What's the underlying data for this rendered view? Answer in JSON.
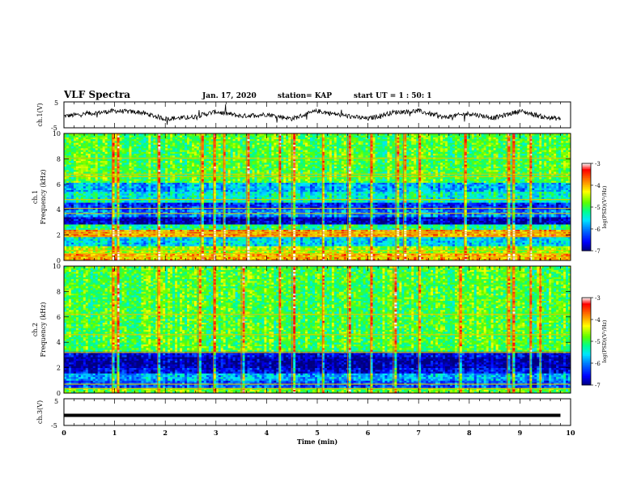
{
  "header": {
    "title": "VLF Spectra",
    "date": "Jan. 17, 2020",
    "station": "station= KAP",
    "start_ut": "start  UT =   1 : 50: 1"
  },
  "chart_data": [
    {
      "type": "line",
      "panel": "ch1-waveform",
      "ylabel": "ch.1(V)",
      "ylim": [
        -5,
        5
      ],
      "yticks": [
        "5",
        "-5"
      ],
      "xlim": [
        0,
        10
      ],
      "x_end": 9.8,
      "series_description_points": {
        "x": [
          0,
          0.5,
          1.0,
          1.5,
          2.0,
          2.5,
          3.0,
          3.5,
          4.0,
          4.5,
          5.0,
          5.5,
          6.0,
          6.5,
          7.0,
          7.5,
          8.0,
          8.5,
          9.0,
          9.5,
          9.8
        ],
        "y": [
          -0.5,
          0.5,
          1.5,
          1.0,
          -1.5,
          -1.0,
          1.2,
          -0.5,
          0.2,
          -1.5,
          1.5,
          -0.2,
          -1.5,
          1.0,
          1.5,
          -1.0,
          0.5,
          -1.2,
          1.5,
          -1.0,
          -1.5
        ]
      },
      "color": "#000000"
    },
    {
      "type": "heatmap",
      "panel": "ch1-spectrogram",
      "ylabel_line1": "ch.1",
      "ylabel_line2": "Frequency (kHz)",
      "ylim": [
        0,
        10
      ],
      "yticks": [
        "0",
        "2",
        "4",
        "6",
        "8",
        "10"
      ],
      "xlim": [
        0,
        10
      ],
      "colorbar": {
        "label": "log(PSD)(V²/Hz)",
        "range": [
          -7,
          -3
        ],
        "ticks": [
          "-3",
          "-4",
          "-5",
          "-6",
          "-7"
        ]
      },
      "bands_khz": [
        {
          "from": 0.0,
          "to": 0.6,
          "level": -4.0
        },
        {
          "from": 0.6,
          "to": 1.2,
          "level": -4.6
        },
        {
          "from": 1.2,
          "to": 1.8,
          "level": -5.6
        },
        {
          "from": 1.8,
          "to": 2.4,
          "level": -3.8
        },
        {
          "from": 2.4,
          "to": 2.8,
          "level": -5.2
        },
        {
          "from": 2.8,
          "to": 3.4,
          "level": -6.8
        },
        {
          "from": 3.4,
          "to": 4.0,
          "level": -6.0
        },
        {
          "from": 4.0,
          "to": 4.6,
          "level": -6.4
        },
        {
          "from": 4.6,
          "to": 5.4,
          "level": -5.4
        },
        {
          "from": 5.4,
          "to": 6.2,
          "level": -5.8
        },
        {
          "from": 6.2,
          "to": 10.0,
          "level": -4.9
        }
      ],
      "horizontal_lines_khz": [
        0.3,
        0.55,
        0.8,
        1.9,
        2.1,
        2.25,
        3.7,
        4.1,
        4.8,
        6.6,
        6.8,
        8.05
      ],
      "vertical_bursts_min": [
        0.95,
        1.05,
        1.85,
        2.7,
        2.95,
        3.15,
        3.6,
        4.25,
        4.5,
        5.1,
        5.6,
        6.05,
        6.55,
        6.7,
        7.0,
        7.9,
        8.75,
        8.85,
        9.2
      ]
    },
    {
      "type": "heatmap",
      "panel": "ch2-spectrogram",
      "ylabel_line1": "ch.2",
      "ylabel_line2": "Frequency (kHz)",
      "ylim": [
        0,
        10
      ],
      "yticks": [
        "0",
        "2",
        "4",
        "6",
        "8",
        "10"
      ],
      "xlim": [
        0,
        10
      ],
      "colorbar": {
        "label": "log(PSD)(V²/Hz)",
        "range": [
          -7,
          -3
        ],
        "ticks": [
          "-3",
          "-4",
          "-5",
          "-6",
          "-7"
        ]
      },
      "bands_khz": [
        {
          "from": 0.0,
          "to": 0.5,
          "level": -4.8
        },
        {
          "from": 0.5,
          "to": 1.0,
          "level": -6.2
        },
        {
          "from": 1.0,
          "to": 1.6,
          "level": -5.8
        },
        {
          "from": 1.6,
          "to": 2.0,
          "level": -6.6
        },
        {
          "from": 2.0,
          "to": 2.8,
          "level": -6.9
        },
        {
          "from": 2.8,
          "to": 3.3,
          "level": -6.6
        },
        {
          "from": 3.3,
          "to": 10.0,
          "level": -4.9
        }
      ],
      "horizontal_lines_khz": [
        0.35,
        0.7,
        3.2,
        4.6,
        6.2
      ],
      "vertical_bursts_min": [
        0.95,
        1.05,
        1.85,
        2.65,
        2.95,
        3.5,
        4.25,
        4.5,
        5.1,
        5.6,
        6.05,
        6.5,
        7.0,
        7.8,
        8.75,
        8.85,
        9.2,
        9.4
      ]
    },
    {
      "type": "line",
      "panel": "ch3-waveform",
      "ylabel": "ch.3(V)",
      "ylim": [
        -5,
        5
      ],
      "yticks": [
        "5",
        "-5"
      ],
      "xlim": [
        0,
        10
      ],
      "xlabel": "Time  (min)",
      "xticks": [
        "0",
        "1",
        "2",
        "3",
        "4",
        "5",
        "6",
        "7",
        "8",
        "9",
        "10"
      ],
      "constant_value": -1.2,
      "x_end": 9.8,
      "color": "#000000"
    }
  ],
  "colors": {
    "colormap": [
      "#000080",
      "#0000ff",
      "#00a0ff",
      "#00ffff",
      "#00ff80",
      "#40ff00",
      "#ffff00",
      "#ff8000",
      "#ff0000",
      "#ffffff"
    ]
  }
}
